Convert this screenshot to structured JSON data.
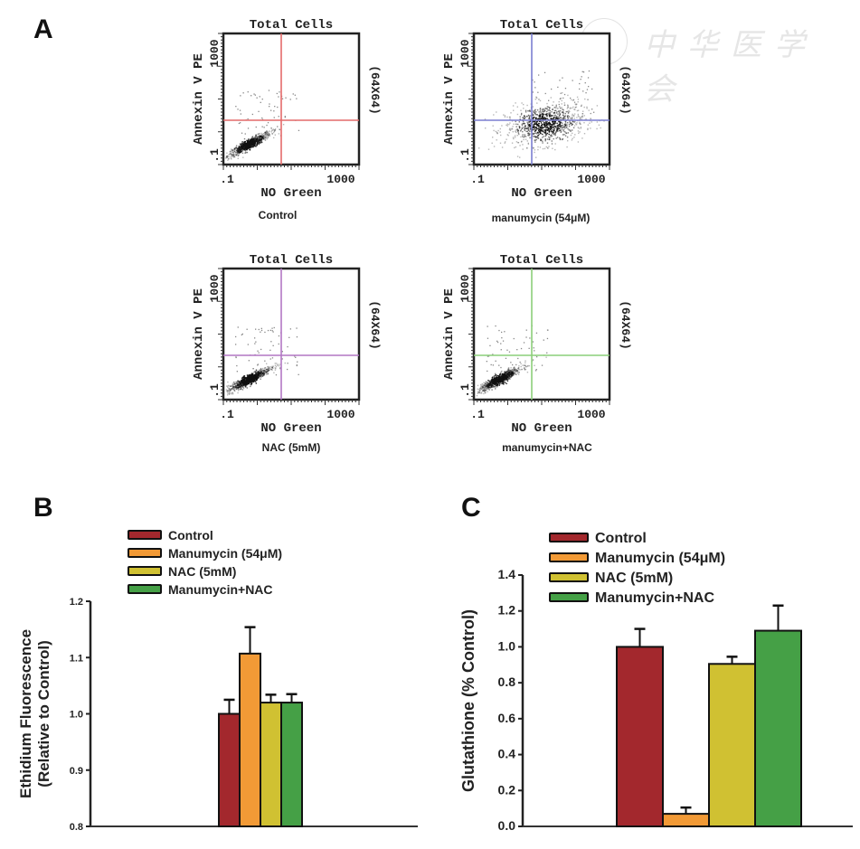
{
  "panels": {
    "a": "A",
    "b": "B",
    "c": "C"
  },
  "watermark": "中华医学会",
  "flow_plots": [
    {
      "title": "Total Cells",
      "x_label": "NO Green",
      "y_label": "Annexin V PE",
      "x_ticks": [
        ".1",
        "1000"
      ],
      "y_ticks": [
        ".1",
        "1000"
      ],
      "side_label": "(64X64)",
      "caption": "Control",
      "gate_color": "#e46a6a",
      "cluster": "low-left"
    },
    {
      "title": "Total Cells",
      "x_label": "NO Green",
      "y_label": "Annexin V PE",
      "x_ticks": [
        ".1",
        "1000"
      ],
      "y_ticks": [
        ".1",
        "1000"
      ],
      "side_label": "(64X64)",
      "caption": "manumycin (54μM)",
      "gate_color": "#7b7fd0",
      "cluster": "center"
    },
    {
      "title": "Total Cells",
      "x_label": "NO Green",
      "y_label": "Annexin V PE",
      "x_ticks": [
        ".1",
        "1000"
      ],
      "y_ticks": [
        ".1",
        "1000"
      ],
      "side_label": "(64X64)",
      "caption": "NAC (5mM)",
      "gate_color": "#b277c4",
      "cluster": "low-left"
    },
    {
      "title": "Total Cells",
      "x_label": "NO Green",
      "y_label": "Annexin V PE",
      "x_ticks": [
        ".1",
        "1000"
      ],
      "y_ticks": [
        ".1",
        "1000"
      ],
      "side_label": "(64X64)",
      "caption": "manumycin+NAC",
      "gate_color": "#8ccf7a",
      "cluster": "low-left"
    }
  ],
  "chart_data": [
    {
      "type": "bar",
      "panel": "B",
      "ylabel": "Ethidium Fluorescence (Relative to Control)",
      "ylabel_lines": [
        "Ethidium Fluorescence",
        "(Relative to Control)"
      ],
      "ylim": [
        0.8,
        1.2
      ],
      "yticks": [
        0.8,
        0.9,
        1.0,
        1.1,
        1.2
      ],
      "ytick_labels": [
        "0.8",
        "0.9",
        "1.0",
        "1.1",
        "1.2"
      ],
      "legend": "top",
      "series": [
        {
          "name": "Control",
          "value": 1.0,
          "error": 0.025,
          "color": "#a3282d"
        },
        {
          "name": "Manumycin (54μM)",
          "value": 1.107,
          "error": 0.047,
          "color": "#f29a36"
        },
        {
          "name": "NAC (5mM)",
          "value": 1.02,
          "error": 0.014,
          "color": "#d0c132"
        },
        {
          "name": "Manumycin+NAC",
          "value": 1.02,
          "error": 0.015,
          "color": "#45a046"
        }
      ]
    },
    {
      "type": "bar",
      "panel": "C",
      "ylabel": "Glutathione (% Control)",
      "ylim": [
        0.0,
        1.4
      ],
      "yticks": [
        0.0,
        0.2,
        0.4,
        0.6,
        0.8,
        1.0,
        1.2,
        1.4
      ],
      "ytick_labels": [
        "0.0",
        "0.2",
        "0.4",
        "0.6",
        "0.8",
        "1.0",
        "1.2",
        "1.4"
      ],
      "legend": "top",
      "series": [
        {
          "name": "Control",
          "value": 1.0,
          "error": 0.1,
          "color": "#a3282d"
        },
        {
          "name": "Manumycin (54μM)",
          "value": 0.07,
          "error": 0.035,
          "color": "#f29a36"
        },
        {
          "name": "NAC (5mM)",
          "value": 0.905,
          "error": 0.04,
          "color": "#d0c132"
        },
        {
          "name": "Manumycin+NAC",
          "value": 1.09,
          "error": 0.14,
          "color": "#45a046"
        }
      ]
    }
  ]
}
